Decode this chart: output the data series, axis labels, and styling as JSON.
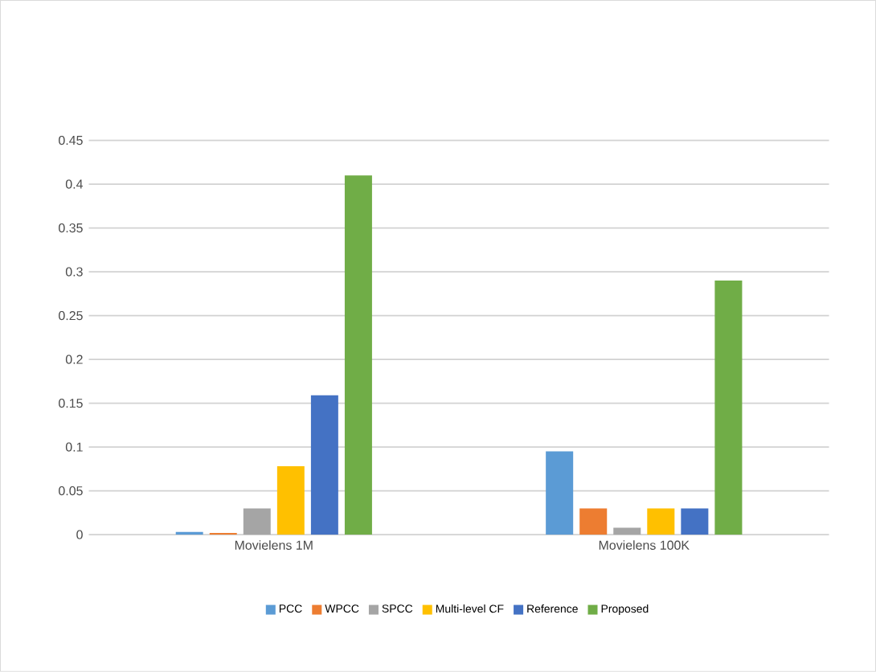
{
  "chart_data": {
    "type": "bar",
    "categories": [
      "Movielens 1M",
      "Movielens 100K"
    ],
    "series": [
      {
        "name": "PCC",
        "color": "#5b9bd5",
        "values": [
          0.003,
          0.095
        ]
      },
      {
        "name": "WPCC",
        "color": "#ed7d31",
        "values": [
          0.002,
          0.03
        ]
      },
      {
        "name": "SPCC",
        "color": "#a5a5a5",
        "values": [
          0.03,
          0.008
        ]
      },
      {
        "name": "Multi-level CF",
        "color": "#ffc000",
        "values": [
          0.078,
          0.03
        ]
      },
      {
        "name": "Reference",
        "color": "#4472c4",
        "values": [
          0.159,
          0.03
        ]
      },
      {
        "name": "Proposed",
        "color": "#70ad47",
        "values": [
          0.41,
          0.29
        ]
      }
    ],
    "ylim": [
      0,
      0.45
    ],
    "yticks": [
      0,
      0.05,
      0.1,
      0.15,
      0.2,
      0.25,
      0.3,
      0.35,
      0.4,
      0.45
    ],
    "grid": "y",
    "legend": "bottom"
  }
}
